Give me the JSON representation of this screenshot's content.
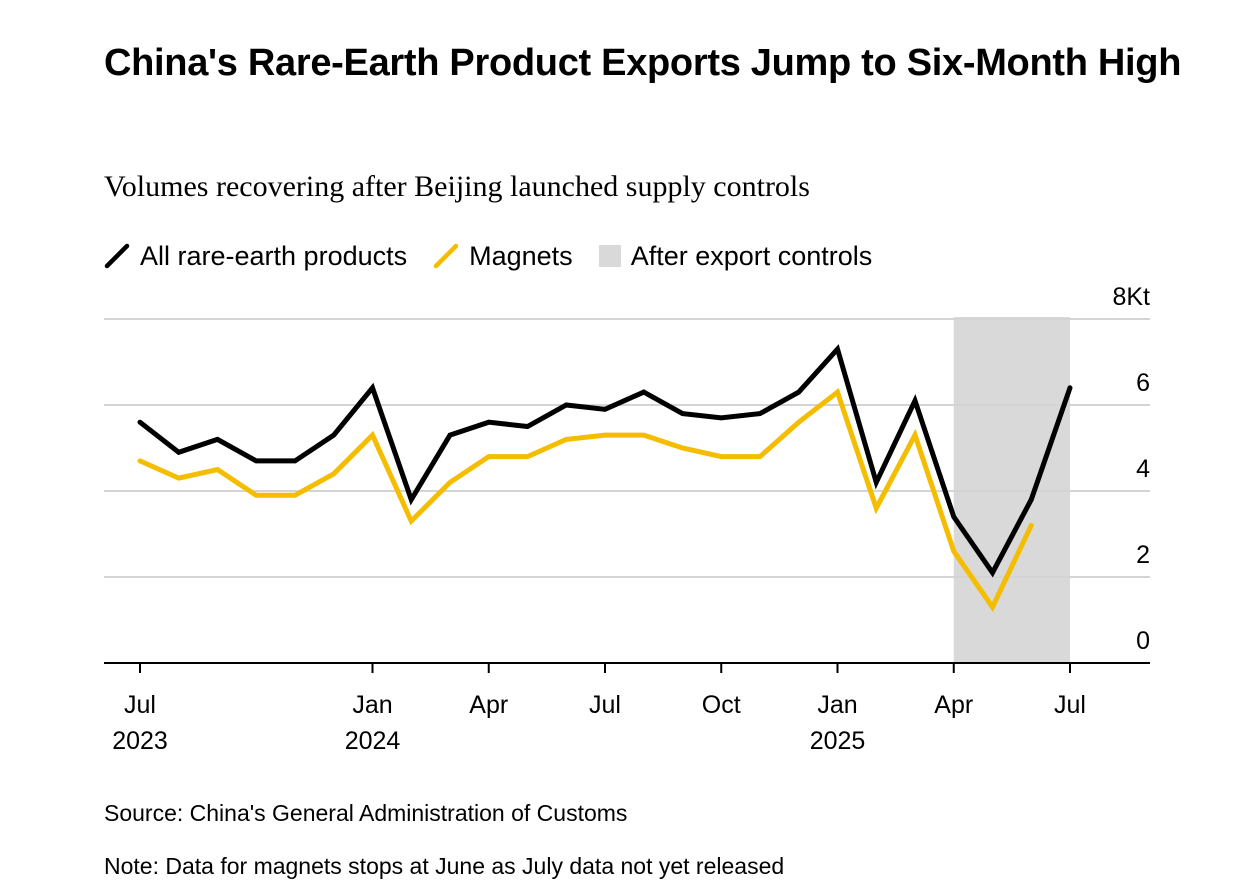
{
  "title": "China's Rare-Earth Product Exports Jump to Six-Month High",
  "subtitle": "Volumes recovering after Beijing launched supply controls",
  "legend": {
    "all": "All rare-earth products",
    "magnets": "Magnets",
    "shade": "After export controls"
  },
  "source": "Source: China's General Administration of Customs",
  "note": "Note: Data for magnets stops at June as July data not yet released",
  "colors": {
    "all": "#000000",
    "magnets": "#f5bd00",
    "shade": "#d9d9d9",
    "grid": "#d4d4d4"
  },
  "chart_data": {
    "type": "line",
    "x": [
      "2023-07",
      "2023-08",
      "2023-09",
      "2023-10",
      "2023-11",
      "2023-12",
      "2024-01",
      "2024-02",
      "2024-03",
      "2024-04",
      "2024-05",
      "2024-06",
      "2024-07",
      "2024-08",
      "2024-09",
      "2024-10",
      "2024-11",
      "2024-12",
      "2025-01",
      "2025-02",
      "2025-03",
      "2025-04",
      "2025-05",
      "2025-06",
      "2025-07"
    ],
    "series": [
      {
        "name": "All rare-earth products",
        "values": [
          5.6,
          4.9,
          5.2,
          4.7,
          4.7,
          5.3,
          6.4,
          3.8,
          5.3,
          5.6,
          5.5,
          6.0,
          5.9,
          6.3,
          5.8,
          5.7,
          5.8,
          6.3,
          7.3,
          4.2,
          6.1,
          3.4,
          2.1,
          3.8,
          6.4
        ]
      },
      {
        "name": "Magnets",
        "values": [
          4.7,
          4.3,
          4.5,
          3.9,
          3.9,
          4.4,
          5.3,
          3.3,
          4.2,
          4.8,
          4.8,
          5.2,
          5.3,
          5.3,
          5.0,
          4.8,
          4.8,
          5.6,
          6.3,
          3.6,
          5.3,
          2.6,
          1.3,
          3.2,
          null
        ]
      }
    ],
    "shaded_range": [
      "2025-04",
      "2025-07"
    ],
    "xticks": [
      {
        "x": "2023-07",
        "label": "Jul",
        "year": "2023"
      },
      {
        "x": "2024-01",
        "label": "Jan",
        "year": "2024"
      },
      {
        "x": "2024-04",
        "label": "Apr",
        "year": ""
      },
      {
        "x": "2024-07",
        "label": "Jul",
        "year": ""
      },
      {
        "x": "2024-10",
        "label": "Oct",
        "year": ""
      },
      {
        "x": "2025-01",
        "label": "Jan",
        "year": "2025"
      },
      {
        "x": "2025-04",
        "label": "Apr",
        "year": ""
      },
      {
        "x": "2025-07",
        "label": "Jul",
        "year": ""
      }
    ],
    "yticks": [
      0,
      2,
      4,
      6,
      8
    ],
    "ytick_labels": [
      "0",
      "2",
      "4",
      "6",
      "8Kt"
    ],
    "ylim": [
      0,
      8
    ],
    "grid": true,
    "yaxis_side": "right",
    "legend_position": "top-left"
  }
}
